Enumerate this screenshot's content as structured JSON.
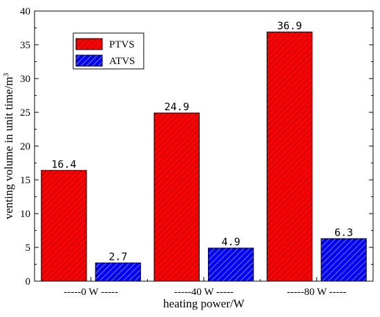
{
  "chart_data": {
    "type": "bar",
    "categories": [
      "-----0 W -----",
      "-----40 W -----",
      "-----80 W -----"
    ],
    "series": [
      {
        "name": "PTVS",
        "values": [
          16.4,
          24.9,
          36.9
        ],
        "color": "#ff0000",
        "hatch_color": "#8b0000",
        "labels": [
          "16.4",
          "24.9",
          "36.9"
        ]
      },
      {
        "name": "ATVS",
        "values": [
          2.7,
          4.9,
          6.3
        ],
        "color": "#0000ff",
        "hatch_color": "#b0b0ff",
        "labels": [
          "2.7",
          "4.9",
          "6.3"
        ]
      }
    ],
    "xlabel": "heating power/W",
    "ylabel": "venting volume in unit time/m",
    "ylabel_superscript": "3",
    "ylim": [
      0,
      40
    ],
    "yticks": [
      0,
      5,
      10,
      15,
      20,
      25,
      30,
      35,
      40
    ],
    "ytick_labels": [
      "0",
      "5",
      "10",
      "15",
      "20",
      "25",
      "30",
      "35",
      "40"
    ],
    "legend_position": "top-left",
    "grid": false
  }
}
